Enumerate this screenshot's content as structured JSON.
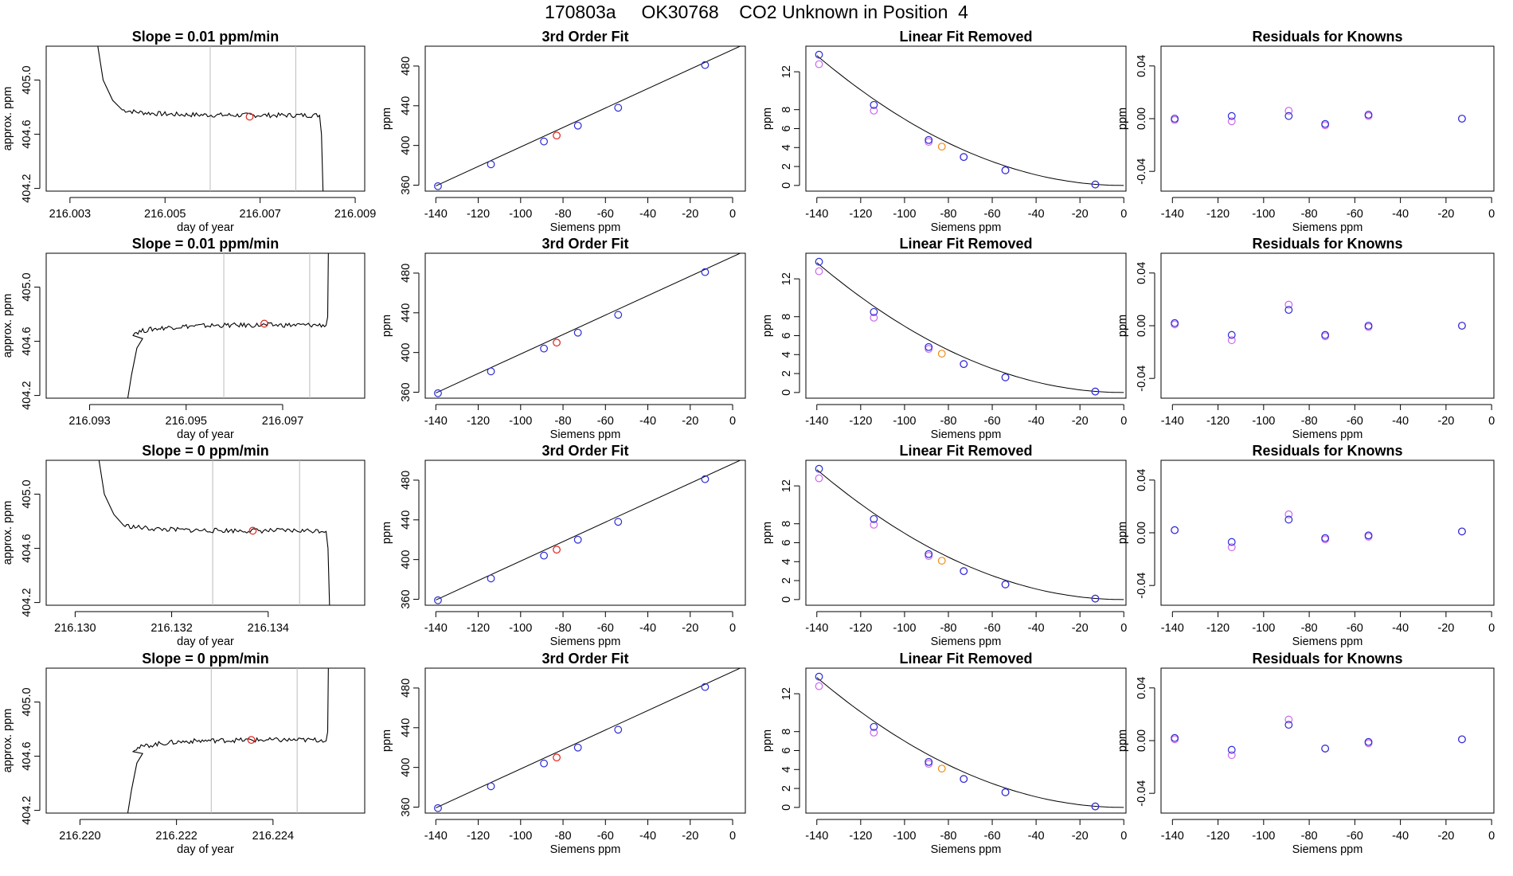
{
  "header": {
    "run_id": "170803a",
    "tank_id": "OK30768",
    "description": "CO2 Unknown in Position  4"
  },
  "colors": {
    "known_fit": "#2b2bd6",
    "known_alt": "#cc66ee",
    "unknown": "#e0201a",
    "unknown_alt": "#f08a10",
    "line": "#000000",
    "marker_line": "#bbbbbb"
  },
  "chart_data": [
    {
      "type": "line",
      "row": 1,
      "title": "Slope =  0.01  ppm/min",
      "xlabel": "day of year",
      "ylabel": "approx. ppm",
      "xlim": [
        216.0025,
        216.0092
      ],
      "ylim": [
        404.18,
        405.25
      ],
      "xticks": [
        216.003,
        216.005,
        216.007,
        216.009
      ],
      "xtick_labels": [
        "216.003",
        "216.005",
        "216.007",
        "216.009"
      ],
      "yticks": [
        404.2,
        404.6,
        405.0
      ],
      "ytick_labels": [
        "404.2",
        "404.6",
        "405.0"
      ],
      "window_markers": [
        216.00595,
        216.00775
      ],
      "unknown_point": [
        216.00678,
        404.73
      ],
      "trace_start": [
        216.0041,
        404.78
      ],
      "trace_end": [
        216.00825,
        404.75
      ],
      "trace_mean": 404.74,
      "trace_ends_at_top": true,
      "trace_exits_bottom": true
    },
    {
      "type": "line",
      "row": 2,
      "title": "Slope =  0.01  ppm/min",
      "xlabel": "day of year",
      "ylabel": "approx. ppm",
      "xlim": [
        216.0921,
        216.0987
      ],
      "ylim": [
        404.18,
        405.25
      ],
      "xticks": [
        216.093,
        216.095,
        216.097
      ],
      "xtick_labels": [
        "216.093",
        "216.095",
        "216.097"
      ],
      "yticks": [
        404.2,
        404.6,
        405.0
      ],
      "ytick_labels": [
        "404.2",
        "404.6",
        "405.0"
      ],
      "window_markers": [
        216.09578,
        216.09756
      ],
      "unknown_point": [
        216.09662,
        404.73
      ],
      "trace_start": [
        216.0939,
        404.66
      ],
      "trace_end": [
        216.0979,
        404.74
      ],
      "trace_mean": 404.72,
      "trace_ends_at_top": false,
      "trace_exits_bottom": false
    },
    {
      "type": "line",
      "row": 3,
      "title": "Slope =  0  ppm/min",
      "xlabel": "day of year",
      "ylabel": "approx. ppm",
      "xlim": [
        216.1294,
        216.136
      ],
      "ylim": [
        404.18,
        405.25
      ],
      "xticks": [
        216.13,
        216.132,
        216.134
      ],
      "xtick_labels": [
        "216.130",
        "216.132",
        "216.134"
      ],
      "yticks": [
        404.2,
        404.6,
        405.0
      ],
      "ytick_labels": [
        "404.2",
        "404.6",
        "405.0"
      ],
      "window_markers": [
        216.13285,
        216.13465
      ],
      "unknown_point": [
        216.13368,
        404.73
      ],
      "trace_start": [
        216.131,
        404.77
      ],
      "trace_end": [
        216.1352,
        404.75
      ],
      "trace_mean": 404.73,
      "trace_ends_at_top": true,
      "trace_exits_bottom": true
    },
    {
      "type": "line",
      "row": 4,
      "title": "Slope =  0  ppm/min",
      "xlabel": "day of year",
      "ylabel": "approx. ppm",
      "xlim": [
        216.2193,
        216.2259
      ],
      "ylim": [
        404.18,
        405.25
      ],
      "xticks": [
        216.22,
        216.222,
        216.224
      ],
      "xtick_labels": [
        "216.220",
        "216.222",
        "216.224"
      ],
      "yticks": [
        404.2,
        404.6,
        405.0
      ],
      "ytick_labels": [
        "404.2",
        "404.6",
        "405.0"
      ],
      "window_markers": [
        216.22272,
        216.2245
      ],
      "unknown_point": [
        216.22355,
        404.72
      ],
      "trace_start": [
        216.2211,
        404.65
      ],
      "trace_end": [
        216.2251,
        404.74
      ],
      "trace_mean": 404.72,
      "trace_ends_at_top": false,
      "trace_exits_bottom": false
    },
    {
      "type": "scatter",
      "row": 1,
      "title": "3rd Order Fit",
      "xlabel": "Siemens ppm",
      "ylabel": "ppm",
      "xlim": [
        -145,
        6
      ],
      "ylim": [
        354,
        500
      ],
      "xticks": [
        -140,
        -120,
        -100,
        -80,
        -60,
        -40,
        -20,
        0
      ],
      "yticks": [
        360,
        400,
        440,
        480
      ],
      "fit_line": {
        "x0": -140,
        "x1": 0,
        "intercept": 496.5,
        "slope": 0.98
      },
      "knowns": [
        [
          -139,
          359
        ],
        [
          -114,
          381
        ],
        [
          -89,
          404
        ],
        [
          -73,
          420
        ],
        [
          -54,
          438
        ],
        [
          -13,
          481
        ]
      ],
      "unknown": [
        -83,
        410
      ]
    },
    {
      "type": "scatter",
      "row": 2,
      "title": "3rd Order Fit",
      "xlabel": "Siemens ppm",
      "ylabel": "ppm",
      "xlim": [
        -145,
        6
      ],
      "ylim": [
        354,
        500
      ],
      "xticks": [
        -140,
        -120,
        -100,
        -80,
        -60,
        -40,
        -20,
        0
      ],
      "yticks": [
        360,
        400,
        440,
        480
      ],
      "fit_line": {
        "x0": -140,
        "x1": 0,
        "intercept": 496.5,
        "slope": 0.98
      },
      "knowns": [
        [
          -139,
          359
        ],
        [
          -114,
          381
        ],
        [
          -89,
          404
        ],
        [
          -73,
          420
        ],
        [
          -54,
          438
        ],
        [
          -13,
          481
        ]
      ],
      "unknown": [
        -83,
        410
      ]
    },
    {
      "type": "scatter",
      "row": 3,
      "title": "3rd Order Fit",
      "xlabel": "Siemens ppm",
      "ylabel": "ppm",
      "xlim": [
        -145,
        6
      ],
      "ylim": [
        354,
        500
      ],
      "xticks": [
        -140,
        -120,
        -100,
        -80,
        -60,
        -40,
        -20,
        0
      ],
      "yticks": [
        360,
        400,
        440,
        480
      ],
      "fit_line": {
        "x0": -140,
        "x1": 0,
        "intercept": 496.5,
        "slope": 0.98
      },
      "knowns": [
        [
          -139,
          359
        ],
        [
          -114,
          381
        ],
        [
          -89,
          404
        ],
        [
          -73,
          420
        ],
        [
          -54,
          438
        ],
        [
          -13,
          481
        ]
      ],
      "unknown": [
        -83,
        410
      ]
    },
    {
      "type": "scatter",
      "row": 4,
      "title": "3rd Order Fit",
      "xlabel": "Siemens ppm",
      "ylabel": "ppm",
      "xlim": [
        -145,
        6
      ],
      "ylim": [
        354,
        500
      ],
      "xticks": [
        -140,
        -120,
        -100,
        -80,
        -60,
        -40,
        -20,
        0
      ],
      "yticks": [
        360,
        400,
        440,
        480
      ],
      "fit_line": {
        "x0": -140,
        "x1": 0,
        "intercept": 496.5,
        "slope": 0.98
      },
      "knowns": [
        [
          -139,
          359
        ],
        [
          -114,
          381
        ],
        [
          -89,
          404
        ],
        [
          -73,
          420
        ],
        [
          -54,
          438
        ],
        [
          -13,
          481
        ]
      ],
      "unknown": [
        -83,
        410
      ]
    },
    {
      "type": "scatter",
      "row": 1,
      "title": "Linear Fit Removed",
      "xlabel": "Siemens ppm",
      "ylabel": "ppm",
      "xlim": [
        -145,
        1
      ],
      "ylim": [
        -0.6,
        14.7
      ],
      "xticks": [
        -140,
        -120,
        -100,
        -80,
        -60,
        -40,
        -20,
        0
      ],
      "yticks": [
        0,
        2,
        4,
        6,
        8,
        12
      ],
      "curve": {
        "x0": -140,
        "x1": 0,
        "a": 0.0007
      },
      "knowns_fit": [
        [
          -139,
          13.8
        ],
        [
          -114,
          8.5
        ],
        [
          -89,
          4.8
        ],
        [
          -73,
          3.0
        ],
        [
          -54,
          1.6
        ],
        [
          -13,
          0.1
        ]
      ],
      "knowns_alt": [
        [
          -139,
          12.8
        ],
        [
          -114,
          7.9
        ],
        [
          -89,
          4.6
        ],
        [
          -73,
          3.0
        ],
        [
          -54,
          1.6
        ],
        [
          -13,
          0.1
        ]
      ],
      "unknown": [
        -83,
        4.1
      ]
    },
    {
      "type": "scatter",
      "row": 2,
      "title": "Linear Fit Removed",
      "xlabel": "Siemens ppm",
      "ylabel": "ppm",
      "xlim": [
        -145,
        1
      ],
      "ylim": [
        -0.6,
        14.7
      ],
      "xticks": [
        -140,
        -120,
        -100,
        -80,
        -60,
        -40,
        -20,
        0
      ],
      "yticks": [
        0,
        2,
        4,
        6,
        8,
        12
      ],
      "curve": {
        "x0": -140,
        "x1": 0,
        "a": 0.0007
      },
      "knowns_fit": [
        [
          -139,
          13.8
        ],
        [
          -114,
          8.5
        ],
        [
          -89,
          4.8
        ],
        [
          -73,
          3.0
        ],
        [
          -54,
          1.6
        ],
        [
          -13,
          0.1
        ]
      ],
      "knowns_alt": [
        [
          -139,
          12.8
        ],
        [
          -114,
          7.9
        ],
        [
          -89,
          4.6
        ],
        [
          -73,
          3.0
        ],
        [
          -54,
          1.6
        ],
        [
          -13,
          0.1
        ]
      ],
      "unknown": [
        -83,
        4.1
      ]
    },
    {
      "type": "scatter",
      "row": 3,
      "title": "Linear Fit Removed",
      "xlabel": "Siemens ppm",
      "ylabel": "ppm",
      "xlim": [
        -145,
        1
      ],
      "ylim": [
        -0.6,
        14.7
      ],
      "xticks": [
        -140,
        -120,
        -100,
        -80,
        -60,
        -40,
        -20,
        0
      ],
      "yticks": [
        0,
        2,
        4,
        6,
        8,
        12
      ],
      "curve": {
        "x0": -140,
        "x1": 0,
        "a": 0.0007
      },
      "knowns_fit": [
        [
          -139,
          13.8
        ],
        [
          -114,
          8.5
        ],
        [
          -89,
          4.8
        ],
        [
          -73,
          3.0
        ],
        [
          -54,
          1.6
        ],
        [
          -13,
          0.1
        ]
      ],
      "knowns_alt": [
        [
          -139,
          12.8
        ],
        [
          -114,
          7.9
        ],
        [
          -89,
          4.6
        ],
        [
          -73,
          3.0
        ],
        [
          -54,
          1.6
        ],
        [
          -13,
          0.1
        ]
      ],
      "unknown": [
        -83,
        4.1
      ]
    },
    {
      "type": "scatter",
      "row": 4,
      "title": "Linear Fit Removed",
      "xlabel": "Siemens ppm",
      "ylabel": "ppm",
      "xlim": [
        -145,
        1
      ],
      "ylim": [
        -0.6,
        14.7
      ],
      "xticks": [
        -140,
        -120,
        -100,
        -80,
        -60,
        -40,
        -20,
        0
      ],
      "yticks": [
        0,
        2,
        4,
        6,
        8,
        12
      ],
      "curve": {
        "x0": -140,
        "x1": 0,
        "a": 0.0007
      },
      "knowns_fit": [
        [
          -139,
          13.8
        ],
        [
          -114,
          8.5
        ],
        [
          -89,
          4.8
        ],
        [
          -73,
          3.0
        ],
        [
          -54,
          1.6
        ],
        [
          -13,
          0.1
        ]
      ],
      "knowns_alt": [
        [
          -139,
          12.8
        ],
        [
          -114,
          7.9
        ],
        [
          -89,
          4.6
        ],
        [
          -73,
          3.0
        ],
        [
          -54,
          1.6
        ],
        [
          -13,
          0.1
        ]
      ],
      "unknown": [
        -83,
        4.1
      ]
    },
    {
      "type": "scatter",
      "row": 1,
      "title": "Residuals for Knowns",
      "xlabel": "Siemens ppm",
      "ylabel": "ppm",
      "xlim": [
        -145,
        1
      ],
      "ylim": [
        -0.055,
        0.055
      ],
      "xticks": [
        -140,
        -120,
        -100,
        -80,
        -60,
        -40,
        -20,
        0
      ],
      "yticks": [
        -0.04,
        0.0,
        0.04
      ],
      "ytick_labels": [
        "-0.04",
        "0.00",
        "0.04"
      ],
      "knowns_fit": [
        [
          -139,
          0.0
        ],
        [
          -114,
          0.002
        ],
        [
          -89,
          0.002
        ],
        [
          -73,
          -0.004
        ],
        [
          -54,
          0.003
        ],
        [
          -13,
          0.0
        ]
      ],
      "knowns_alt": [
        [
          -139,
          -0.001
        ],
        [
          -114,
          -0.002
        ],
        [
          -89,
          0.006
        ],
        [
          -73,
          -0.005
        ],
        [
          -54,
          0.002
        ],
        [
          -13,
          0.0
        ]
      ]
    },
    {
      "type": "scatter",
      "row": 2,
      "title": "Residuals for Knowns",
      "xlabel": "Siemens ppm",
      "ylabel": "ppm",
      "xlim": [
        -145,
        1
      ],
      "ylim": [
        -0.055,
        0.055
      ],
      "xticks": [
        -140,
        -120,
        -100,
        -80,
        -60,
        -40,
        -20,
        0
      ],
      "yticks": [
        -0.04,
        0.0,
        0.04
      ],
      "ytick_labels": [
        "-0.04",
        "0.00",
        "0.04"
      ],
      "knowns_fit": [
        [
          -139,
          0.002
        ],
        [
          -114,
          -0.007
        ],
        [
          -89,
          0.012
        ],
        [
          -73,
          -0.007
        ],
        [
          -54,
          0.0
        ],
        [
          -13,
          0.0
        ]
      ],
      "knowns_alt": [
        [
          -139,
          0.001
        ],
        [
          -114,
          -0.011
        ],
        [
          -89,
          0.016
        ],
        [
          -73,
          -0.008
        ],
        [
          -54,
          -0.001
        ],
        [
          -13,
          0.0
        ]
      ]
    },
    {
      "type": "scatter",
      "row": 3,
      "title": "Residuals for Knowns",
      "xlabel": "Siemens ppm",
      "ylabel": "ppm",
      "xlim": [
        -145,
        1
      ],
      "ylim": [
        -0.055,
        0.055
      ],
      "xticks": [
        -140,
        -120,
        -100,
        -80,
        -60,
        -40,
        -20,
        0
      ],
      "yticks": [
        -0.04,
        0.0,
        0.04
      ],
      "ytick_labels": [
        "-0.04",
        "0.00",
        "0.04"
      ],
      "knowns_fit": [
        [
          -139,
          0.002
        ],
        [
          -114,
          -0.007
        ],
        [
          -89,
          0.01
        ],
        [
          -73,
          -0.004
        ],
        [
          -54,
          -0.002
        ],
        [
          -13,
          0.001
        ]
      ],
      "knowns_alt": [
        [
          -139,
          0.002
        ],
        [
          -114,
          -0.011
        ],
        [
          -89,
          0.014
        ],
        [
          -73,
          -0.005
        ],
        [
          -54,
          -0.003
        ],
        [
          -13,
          0.001
        ]
      ]
    },
    {
      "type": "scatter",
      "row": 4,
      "title": "Residuals for Knowns",
      "xlabel": "Siemens ppm",
      "ylabel": "ppm",
      "xlim": [
        -145,
        1
      ],
      "ylim": [
        -0.055,
        0.055
      ],
      "xticks": [
        -140,
        -120,
        -100,
        -80,
        -60,
        -40,
        -20,
        0
      ],
      "yticks": [
        -0.04,
        0.0,
        0.04
      ],
      "ytick_labels": [
        "-0.04",
        "0.00",
        "0.04"
      ],
      "knowns_fit": [
        [
          -139,
          0.002
        ],
        [
          -114,
          -0.007
        ],
        [
          -89,
          0.012
        ],
        [
          -73,
          -0.006
        ],
        [
          -54,
          -0.001
        ],
        [
          -13,
          0.001
        ]
      ],
      "knowns_alt": [
        [
          -139,
          0.001
        ],
        [
          -114,
          -0.011
        ],
        [
          -89,
          0.016
        ],
        [
          -73,
          -0.006
        ],
        [
          -54,
          -0.002
        ],
        [
          -13,
          0.001
        ]
      ]
    }
  ]
}
